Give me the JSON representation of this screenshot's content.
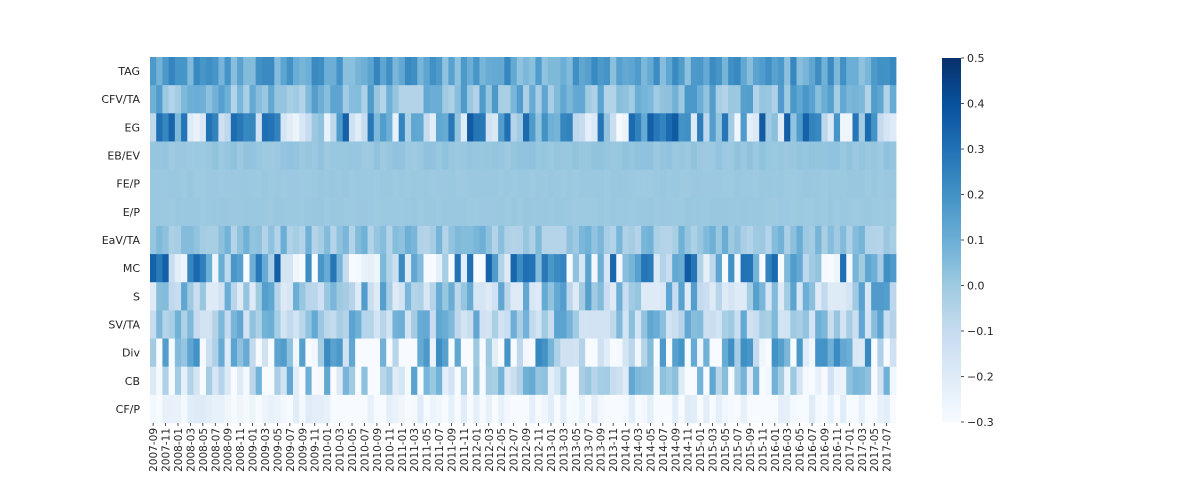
{
  "chart_data": {
    "type": "heatmap",
    "title": "",
    "xlabel": "",
    "ylabel": "",
    "rows": [
      "TAG",
      "CFV/TA",
      "EG",
      "EB/EV",
      "FE/P",
      "E/P",
      "EaV/TA",
      "MC",
      "S",
      "SV/TA",
      "Div",
      "CB",
      "CF/P"
    ],
    "x_start": "2007-09",
    "x_end": "2017-08",
    "x_step_months": 1,
    "x_tick_labels": [
      "2007-09",
      "2007-11",
      "2008-01",
      "2008-03",
      "2008-05",
      "2008-07",
      "2008-09",
      "2008-11",
      "2009-01",
      "2009-03",
      "2009-05",
      "2009-07",
      "2009-09",
      "2009-11",
      "2010-01",
      "2010-03",
      "2010-05",
      "2010-07",
      "2010-09",
      "2010-11",
      "2011-01",
      "2011-03",
      "2011-05",
      "2011-07",
      "2011-09",
      "2011-11",
      "2012-01",
      "2012-03",
      "2012-05",
      "2012-07",
      "2012-09",
      "2012-11",
      "2013-01",
      "2013-03",
      "2013-05",
      "2013-07",
      "2013-09",
      "2013-11",
      "2014-01",
      "2014-03",
      "2014-05",
      "2014-07",
      "2014-09",
      "2014-11",
      "2015-01",
      "2015-03",
      "2015-05",
      "2015-07",
      "2015-09",
      "2015-11",
      "2016-01",
      "2016-03",
      "2016-05",
      "2016-07",
      "2016-09",
      "2016-11",
      "2017-01",
      "2017-03",
      "2017-05",
      "2017-07"
    ],
    "row_value_profiles": [
      {
        "row": "TAG",
        "min": 0.03,
        "max": 0.26,
        "mean": 0.13
      },
      {
        "row": "CFV/TA",
        "min": -0.05,
        "max": 0.22,
        "mean": 0.05
      },
      {
        "row": "EG",
        "min": -0.3,
        "max": 0.37,
        "mean": 0.05
      },
      {
        "row": "EB/EV",
        "min": 0.0,
        "max": 0.03,
        "mean": 0.015
      },
      {
        "row": "FE/P",
        "min": 0.0,
        "max": 0.01,
        "mean": 0.005
      },
      {
        "row": "E/P",
        "min": 0.0,
        "max": 0.01,
        "mean": 0.005
      },
      {
        "row": "EaV/TA",
        "min": -0.06,
        "max": 0.12,
        "mean": 0.02
      },
      {
        "row": "MC",
        "min": -0.3,
        "max": 0.46,
        "mean": 0.0
      },
      {
        "row": "S",
        "min": -0.2,
        "max": 0.28,
        "mean": -0.06
      },
      {
        "row": "SV/TA",
        "min": -0.15,
        "max": 0.2,
        "mean": -0.03
      },
      {
        "row": "Div",
        "min": -0.3,
        "max": 0.35,
        "mean": -0.08
      },
      {
        "row": "CB",
        "min": -0.3,
        "max": 0.25,
        "mean": -0.13
      },
      {
        "row": "CF/P",
        "min": -0.3,
        "max": -0.15,
        "mean": -0.27
      }
    ],
    "value_range": [
      -0.3,
      0.5
    ],
    "colorbar": {
      "colormap": "Blues",
      "ticks": [
        -0.3,
        -0.2,
        -0.1,
        0.0,
        0.1,
        0.2,
        0.3,
        0.4,
        0.5
      ],
      "tick_labels": [
        "−0.3",
        "−0.2",
        "−0.1",
        "0.0",
        "0.1",
        "0.2",
        "0.3",
        "0.4",
        "0.5"
      ]
    },
    "grid": false,
    "legend": "colorbar-right"
  }
}
